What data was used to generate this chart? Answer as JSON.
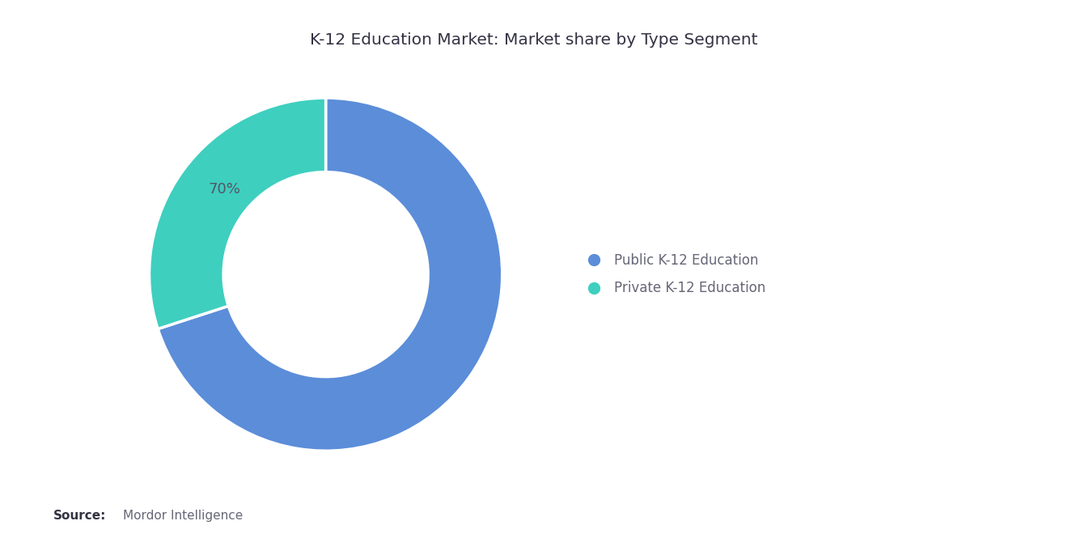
{
  "title": "K-12 Education Market: Market share by Type Segment",
  "segments": [
    "Public K-12 Education",
    "Private K-12 Education"
  ],
  "values": [
    70,
    30
  ],
  "colors": [
    "#5b8dd9",
    "#3ecfbf"
  ],
  "label_text": "70%",
  "label_color": "#555566",
  "background_color": "#ffffff",
  "source_bold": "Source:",
  "source_normal": "Mordor Intelligence",
  "title_fontsize": 14.5,
  "legend_fontsize": 12,
  "source_fontsize": 11,
  "label_fontsize": 13,
  "donut_width": 0.42
}
